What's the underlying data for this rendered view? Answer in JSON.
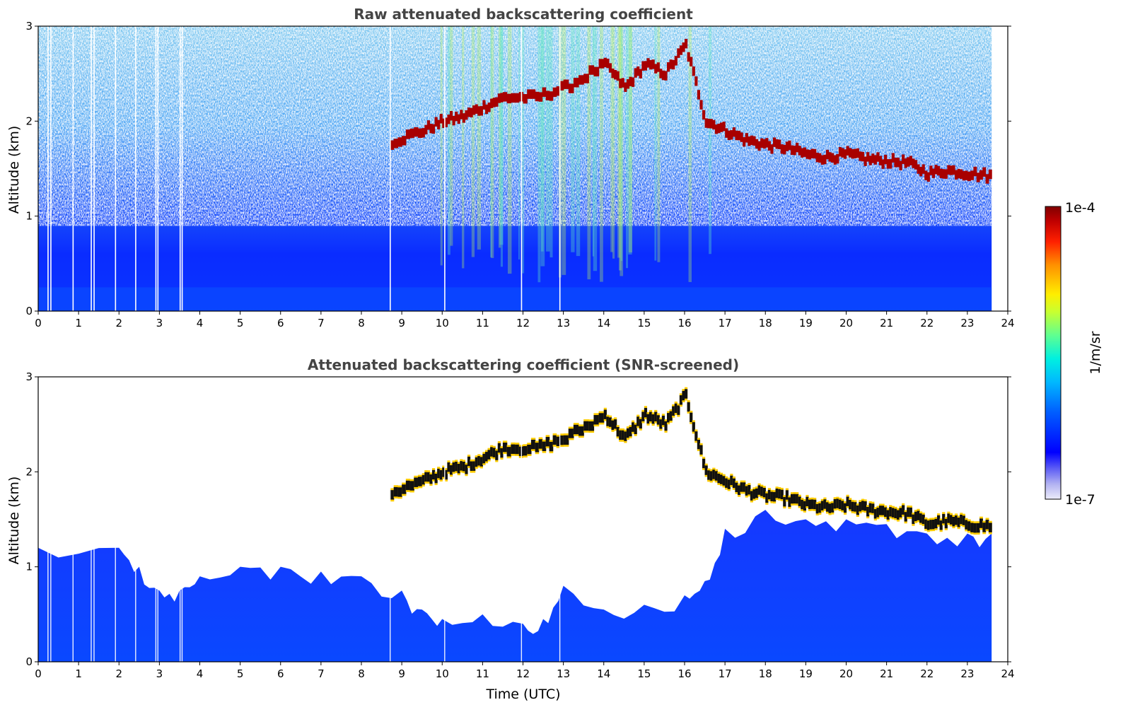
{
  "chart_data": [
    {
      "type": "heatmap",
      "title": "Raw attenuated backscattering coefficient",
      "xlabel": "",
      "ylabel": "Altitude (km)",
      "xlim": [
        0,
        24
      ],
      "ylim": [
        0,
        3
      ],
      "x_ticks": [
        "0",
        "1",
        "2",
        "3",
        "4",
        "5",
        "6",
        "7",
        "8",
        "9",
        "10",
        "11",
        "12",
        "13",
        "14",
        "15",
        "16",
        "17",
        "18",
        "19",
        "20",
        "21",
        "22",
        "23",
        "24"
      ],
      "y_ticks": [
        "0",
        "1",
        "2",
        "3"
      ],
      "data_end_time": 23.6,
      "features": {
        "background_noise": "speckled cyan/blue noise increasing above ~0.8 km",
        "surface_layer_top_km": 0.8,
        "cloud_layer": [
          [
            8.7,
            1.78
          ],
          [
            9.5,
            1.9
          ],
          [
            10.0,
            2.0
          ],
          [
            10.5,
            2.05
          ],
          [
            11.0,
            2.15
          ],
          [
            11.5,
            2.25
          ],
          [
            12.3,
            2.25
          ],
          [
            13.0,
            2.35
          ],
          [
            14.0,
            2.6
          ],
          [
            14.5,
            2.35
          ],
          [
            15.0,
            2.6
          ],
          [
            15.5,
            2.5
          ],
          [
            16.0,
            2.8
          ],
          [
            16.5,
            2.0
          ],
          [
            17.0,
            1.9
          ],
          [
            17.5,
            1.8
          ],
          [
            18.0,
            1.75
          ],
          [
            18.5,
            1.72
          ],
          [
            19.0,
            1.65
          ],
          [
            19.5,
            1.62
          ],
          [
            20.0,
            1.65
          ],
          [
            20.5,
            1.6
          ],
          [
            21.0,
            1.58
          ],
          [
            21.5,
            1.56
          ],
          [
            22.0,
            1.45
          ],
          [
            22.5,
            1.48
          ],
          [
            23.0,
            1.45
          ],
          [
            23.6,
            1.42
          ]
        ],
        "data_gaps_hours": [
          0.23,
          0.3,
          0.85,
          1.3,
          1.37,
          1.9,
          2.4,
          2.9,
          2.95,
          3.5,
          3.55,
          8.7,
          10.05,
          11.95,
          12.9
        ]
      }
    },
    {
      "type": "heatmap",
      "title": "Attenuated backscattering coefficient (SNR-screened)",
      "xlabel": "Time (UTC)",
      "ylabel": "Altitude (km)",
      "xlim": [
        0,
        24
      ],
      "ylim": [
        0,
        3
      ],
      "x_ticks": [
        "0",
        "1",
        "2",
        "3",
        "4",
        "5",
        "6",
        "7",
        "8",
        "9",
        "10",
        "11",
        "12",
        "13",
        "14",
        "15",
        "16",
        "17",
        "18",
        "19",
        "20",
        "21",
        "22",
        "23",
        "24"
      ],
      "y_ticks": [
        "0",
        "1",
        "2",
        "3"
      ],
      "data_end_time": 23.6,
      "boundary_layer_top_km": [
        [
          0.0,
          1.2
        ],
        [
          2.0,
          1.2
        ],
        [
          2.5,
          1.0
        ],
        [
          3.0,
          0.75
        ],
        [
          3.5,
          0.75
        ],
        [
          4.0,
          0.9
        ],
        [
          5.0,
          1.0
        ],
        [
          6.0,
          1.0
        ],
        [
          7.0,
          0.95
        ],
        [
          8.0,
          0.9
        ],
        [
          9.0,
          0.75
        ],
        [
          9.5,
          0.55
        ],
        [
          10.0,
          0.45
        ],
        [
          11.0,
          0.5
        ],
        [
          12.0,
          0.4
        ],
        [
          12.5,
          0.45
        ],
        [
          13.0,
          0.8
        ],
        [
          14.0,
          0.55
        ],
        [
          15.0,
          0.6
        ],
        [
          16.0,
          0.7
        ],
        [
          16.5,
          0.85
        ],
        [
          17.0,
          1.4
        ],
        [
          18.0,
          1.6
        ],
        [
          19.0,
          1.5
        ],
        [
          20.0,
          1.5
        ],
        [
          21.0,
          1.45
        ],
        [
          22.0,
          1.35
        ],
        [
          23.0,
          1.35
        ],
        [
          23.6,
          1.35
        ]
      ]
    }
  ],
  "colorbar": {
    "label": "1/m/sr",
    "max_label": "1e-4",
    "min_label": "1e-7",
    "colormap": "jet",
    "colors": [
      "#e8e8f8",
      "#c8c8f0",
      "#9090f0",
      "#0000ff",
      "#0050ff",
      "#00a0ff",
      "#00e8f0",
      "#40ff b0",
      "#b0ff40",
      "#ffff00",
      "#ffa000",
      "#ff3000",
      "#c00000",
      "#800000"
    ]
  }
}
